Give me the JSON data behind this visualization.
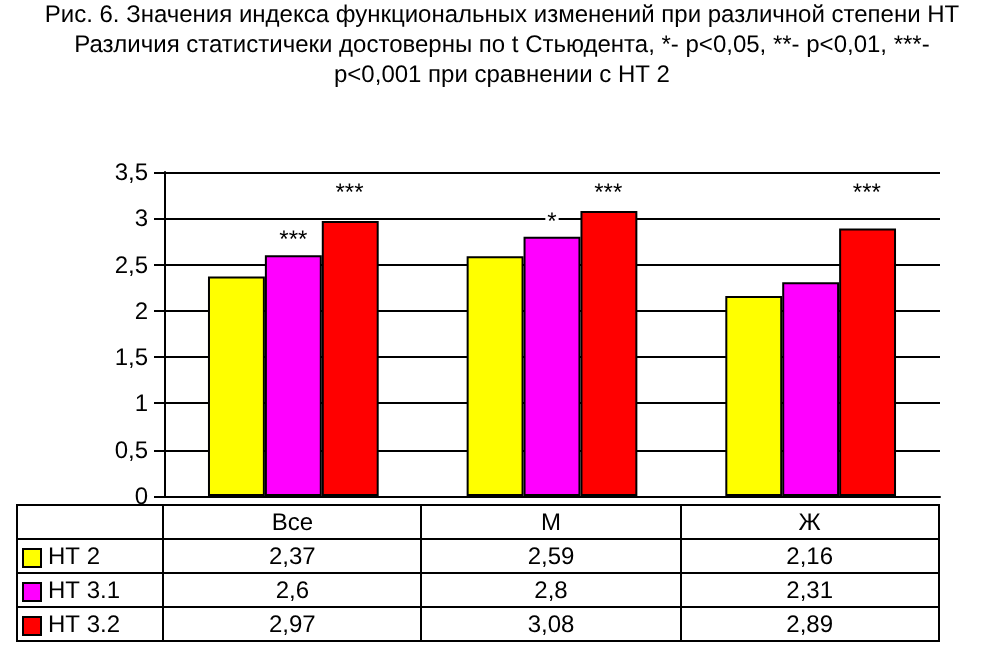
{
  "chart_data": {
    "type": "bar",
    "title": "Рис. 6. Значения индекса функциональных изменений при различной степени НТ",
    "subtitle": "Различия статистичеки достоверны по t Стьюдента, *- p<0,05, **- p<0,01, ***- p<0,001 при сравнении с НТ 2",
    "categories": [
      "Все",
      "М",
      "Ж"
    ],
    "series": [
      {
        "name": "НТ 2",
        "color": "#ffff00",
        "values": [
          2.37,
          2.59,
          2.16
        ],
        "value_labels": [
          "2,37",
          "2,59",
          "2,16"
        ]
      },
      {
        "name": "НТ 3.1",
        "color": "#ff00ff",
        "values": [
          2.6,
          2.8,
          2.31
        ],
        "value_labels": [
          "2,6",
          "2,8",
          "2,31"
        ]
      },
      {
        "name": "НТ 3.2",
        "color": "#ff0000",
        "values": [
          2.97,
          3.08,
          2.89
        ],
        "value_labels": [
          "2,97",
          "3,08",
          "2,89"
        ]
      }
    ],
    "ylim": [
      0,
      3.5
    ],
    "yticks": [
      0,
      {
        "value": 0.5,
        "label": "0,5"
      },
      1,
      {
        "value": 1.5,
        "label": "1,5"
      },
      2,
      {
        "value": 2.5,
        "label": "2,5"
      },
      3,
      {
        "value": 3.5,
        "label": "3,5"
      }
    ],
    "grid": "y",
    "legend": "bottom",
    "annotations": [
      {
        "text": "***",
        "x": "Все",
        "y": 2.6
      },
      "***",
      {
        "text": "*",
        "x": "М",
        "y": 2.8
      },
      "***",
      "***"
    ]
  }
}
